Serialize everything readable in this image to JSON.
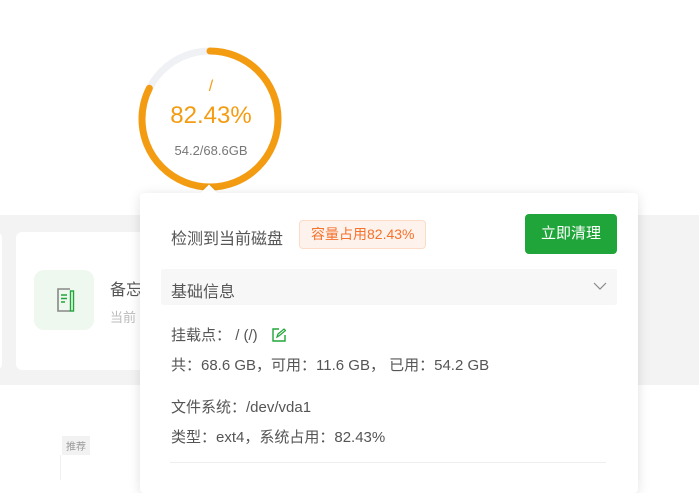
{
  "gauge": {
    "mount": "/",
    "percent_label": "82.43%",
    "percent": 82.43,
    "size_label": "54.2/68.6GB",
    "color": "#f39c12",
    "track_color": "#f0f1f5"
  },
  "card": {
    "title": "备忘",
    "subtitle": "当前"
  },
  "recommend_tag": "推荐",
  "popover": {
    "title": "检测到当前磁盘",
    "badge": "容量占用82.43%",
    "clean_button": "立即清理",
    "section_title": "基础信息",
    "mount_label": "挂载点：",
    "mount_value": "/ (/)",
    "capacity_line": "共：68.6 GB，可用：11.6 GB， 已用：54.2 GB",
    "filesystem_line": "文件系统：/dev/vda1",
    "type_line": "类型：ext4，系统占用：82.43%",
    "accent": "#20a53a"
  }
}
